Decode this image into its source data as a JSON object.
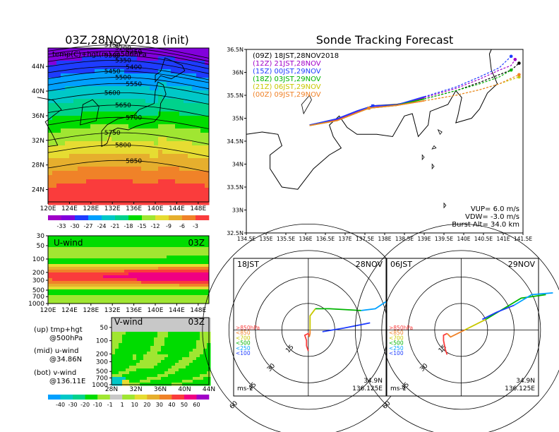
{
  "left_title": "03Z,28NOV2018 (init)",
  "right_title": "Sonde Tracking Forecast",
  "chart_data": [
    {
      "type": "heatmap",
      "panel": "temp-hgt-500hPa",
      "map_label": "temp(C)+hgt(m) @500hPa",
      "x_ticks": [
        "120E",
        "124E",
        "128E",
        "132E",
        "136E",
        "140E",
        "144E",
        "148E"
      ],
      "y_ticks": [
        "24N",
        "28N",
        "32N",
        "36N",
        "40N",
        "44N"
      ],
      "contour_labels": [
        "5150",
        "5200",
        "5250",
        "5300",
        "5350",
        "5400",
        "5450",
        "5500",
        "5550",
        "5600",
        "5650",
        "5700",
        "5750",
        "5800",
        "5850"
      ],
      "colorbar": {
        "labels": [
          "-33",
          "-30",
          "-27",
          "-24",
          "-21",
          "-18",
          "-15",
          "-12",
          "-9",
          "-6",
          "-3"
        ],
        "colors": [
          "#a000c8",
          "#8200dc",
          "#1e3cff",
          "#00a0ff",
          "#00c8c8",
          "#00d28c",
          "#00dc00",
          "#a0e632",
          "#e6dc32",
          "#e6af2d",
          "#f08228",
          "#fa3c3c"
        ]
      }
    },
    {
      "type": "heatmap",
      "panel": "u-wind",
      "label": "U-wind",
      "time": "03Z",
      "x_ticks": [
        "120E",
        "124E",
        "128E",
        "132E",
        "136E",
        "140E",
        "144E",
        "148E"
      ],
      "y_ticks": [
        "30",
        "50",
        "100",
        "200",
        "300",
        "500",
        "700",
        "1000"
      ]
    },
    {
      "type": "heatmap",
      "panel": "v-wind",
      "label": "V-wind",
      "time": "03Z",
      "x_ticks": [
        "28N",
        "32N",
        "36N",
        "40N",
        "44N"
      ],
      "y_ticks": [
        "50",
        "100",
        "200",
        "300",
        "500",
        "700",
        "1000"
      ],
      "colorbar": {
        "labels": [
          "-40",
          "-30",
          "-20",
          "-10",
          "-1",
          "1",
          "10",
          "20",
          "30",
          "40",
          "50",
          "60"
        ],
        "colors": [
          "#00a0ff",
          "#00c8c8",
          "#00d28c",
          "#00dc00",
          "#a0e632",
          "#c8c8c8",
          "#a0e632",
          "#e6dc32",
          "#e6af2d",
          "#f08228",
          "#fa3c3c",
          "#f00082",
          "#a000c8"
        ]
      }
    },
    {
      "type": "line",
      "panel": "sonde-tracks",
      "xlim": [
        134.5,
        141.5
      ],
      "ylim": [
        32.5,
        36.5
      ],
      "x_ticks": [
        "134.5E",
        "135E",
        "135.5E",
        "136E",
        "136.5E",
        "137E",
        "137.5E",
        "138E",
        "138.5E",
        "139E",
        "139.5E",
        "140E",
        "140.5E",
        "141E",
        "141.5E"
      ],
      "y_ticks": [
        "32.5N",
        "33N",
        "33.5N",
        "34N",
        "34.5N",
        "35N",
        "35.5N",
        "36N",
        "36.5N"
      ],
      "series": [
        {
          "name": "(09Z)  18JST,28NOV2018",
          "color": "#000000",
          "x": [
            136.1,
            136.8,
            137.3,
            137.7,
            138.3,
            139.0,
            139.8,
            140.4,
            140.9,
            141.2,
            141.4
          ],
          "y": [
            34.85,
            34.98,
            35.15,
            35.27,
            35.3,
            35.42,
            35.6,
            35.78,
            35.95,
            36.05,
            36.2
          ]
        },
        {
          "name": "(12Z)  21JST,28NOV",
          "color": "#a000c8",
          "x": [
            136.1,
            136.8,
            137.3,
            137.7,
            138.3,
            139.0,
            139.8,
            140.4,
            140.9,
            141.2,
            141.3
          ],
          "y": [
            34.85,
            34.98,
            35.15,
            35.26,
            35.28,
            35.45,
            35.65,
            35.85,
            36.05,
            36.15,
            36.28
          ]
        },
        {
          "name": "(15Z)  00JST,29NOV",
          "color": "#1e3cff",
          "x": [
            136.1,
            136.8,
            137.3,
            137.7,
            138.3,
            139.0,
            139.8,
            140.4,
            140.9,
            141.2
          ],
          "y": [
            34.85,
            34.99,
            35.16,
            35.27,
            35.29,
            35.47,
            35.68,
            35.9,
            36.1,
            36.35
          ]
        },
        {
          "name": "(18Z)  03JST,29NOV",
          "color": "#00b400",
          "x": [
            136.1,
            136.8,
            137.3,
            137.6,
            138.3,
            139.0,
            139.8,
            140.4,
            140.9,
            141.2
          ],
          "y": [
            34.84,
            34.95,
            35.12,
            35.22,
            35.28,
            35.42,
            35.6,
            35.75,
            35.9,
            36.05
          ]
        },
        {
          "name": "(21Z)  06JST,29NOV",
          "color": "#c8c800",
          "x": [
            136.1,
            136.8,
            137.3,
            137.6,
            138.3,
            139.0,
            139.8,
            140.4,
            140.9,
            141.4
          ],
          "y": [
            34.84,
            34.95,
            35.12,
            35.22,
            35.28,
            35.38,
            35.5,
            35.62,
            35.75,
            35.9
          ]
        },
        {
          "name": "(00Z)  09JST,29NOV",
          "color": "#f08228",
          "x": [
            136.1,
            136.8,
            137.3,
            137.6,
            138.3,
            139.0,
            139.8,
            140.4,
            140.9,
            141.4
          ],
          "y": [
            34.84,
            34.95,
            35.12,
            35.22,
            35.28,
            35.38,
            35.5,
            35.62,
            35.75,
            35.95
          ]
        }
      ],
      "params": [
        "VUP=  6.0  m/s",
        "VDW= -3.0  m/s",
        "Burst Alt=  34.0  km"
      ]
    },
    {
      "type": "scatter",
      "panel": "hodograph-18JST",
      "left_label": "18JST",
      "right_label": "28NOV",
      "ring_labels": [
        "15",
        "30",
        "45",
        "60"
      ],
      "legend": [
        ">850hPa",
        "<850",
        "<700",
        "<500",
        "<250",
        "<100"
      ],
      "unit": "ms-1",
      "location": [
        "34.9N",
        "136.125E"
      ]
    },
    {
      "type": "scatter",
      "panel": "hodograph-06JST",
      "left_label": "06JST",
      "right_label": "29NOV",
      "ring_labels": [
        "15",
        "30",
        "45",
        "60"
      ],
      "legend": [
        ">850hPa",
        "<850",
        "<700",
        "<500",
        "<250",
        "<100"
      ],
      "unit": "ms-1",
      "location": [
        "34.9N",
        "136.125E"
      ]
    }
  ],
  "footnotes": {
    "up_a": "(up) tmp+hgt",
    "up_b": "@500hPa",
    "mid_a": "(mid) u-wind",
    "mid_b": "@34.86N",
    "bot_a": "(bot) v-wind",
    "bot_b": "@136.11E"
  },
  "colors": {
    "frame": "#000000",
    "coast": "#000000"
  }
}
